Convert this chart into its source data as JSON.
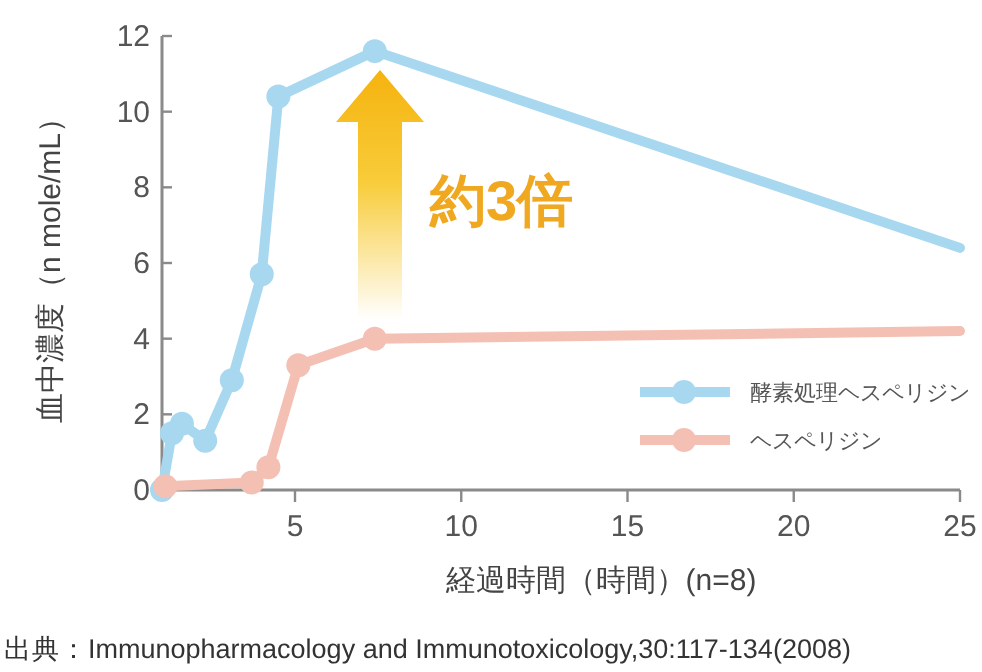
{
  "chart_data": {
    "type": "line",
    "xlabel": "経過時間（時間）(n=8)",
    "ylabel": "血中濃度（n mole/mL）",
    "xlim": [
      1,
      25
    ],
    "ylim": [
      0,
      12
    ],
    "xticks": [
      5,
      10,
      15,
      20,
      25
    ],
    "yticks": [
      0,
      2,
      4,
      6,
      8,
      10,
      12
    ],
    "marker": "circle",
    "legend": "bottom right",
    "series": [
      {
        "name": "酵素処理ヘスペリジン",
        "color": "#a8d8f0",
        "x": [
          1,
          1.3,
          1.6,
          2.3,
          3.1,
          4,
          4.5,
          7.4,
          25
        ],
        "values": [
          0,
          1.5,
          1.75,
          1.3,
          2.9,
          5.7,
          10.4,
          11.6,
          6.4
        ]
      },
      {
        "name": "ヘスペリジン",
        "color": "#f4c0b4",
        "x": [
          1.1,
          3.7,
          4.2,
          5.1,
          7.4,
          25
        ],
        "values": [
          0.1,
          0.2,
          0.6,
          3.3,
          4.0,
          4.2
        ]
      }
    ],
    "annotations": [
      "約3倍",
      "出典：Immunopharmacology and Immunotoxicology,30:117-134(2008)"
    ]
  }
}
